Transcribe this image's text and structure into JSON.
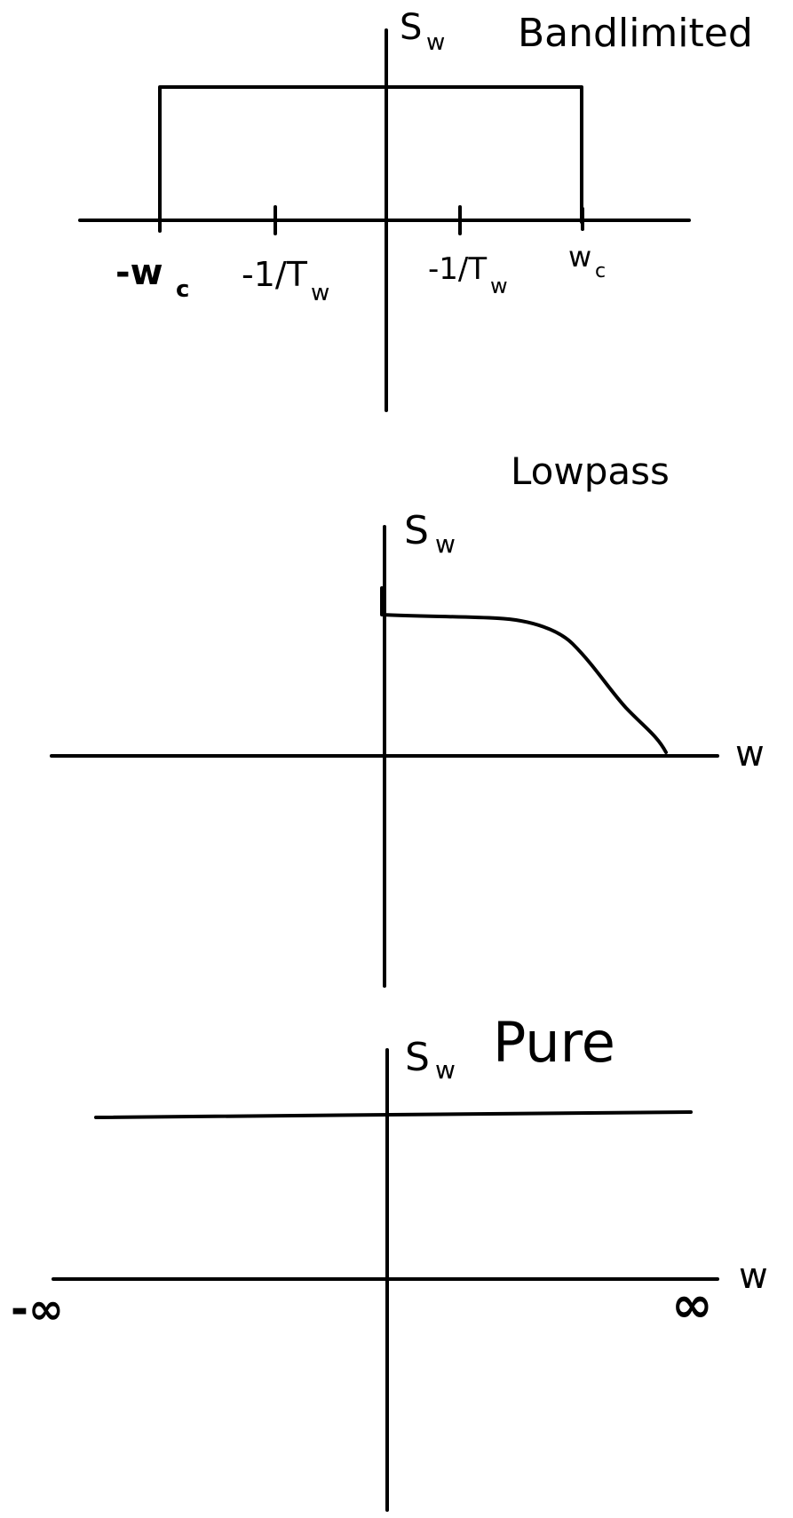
{
  "panels": [
    {
      "title": "Bandlimited",
      "y_label_main": "S",
      "y_label_sub": "w",
      "tick_labels": [
        {
          "main": "-w",
          "sub": "c"
        },
        {
          "main": "-1/T",
          "sub": "w"
        },
        {
          "main": "-1/T",
          "sub": "w"
        },
        {
          "main": "w",
          "sub": "c"
        }
      ]
    },
    {
      "title": "Lowpass",
      "y_label_main": "S",
      "y_label_sub": "w",
      "x_label": "w"
    },
    {
      "title": "Pure",
      "y_label_main": "S",
      "y_label_sub": "w",
      "x_label": "w",
      "x_min_label": "-∞",
      "x_max_label": "∞"
    }
  ]
}
